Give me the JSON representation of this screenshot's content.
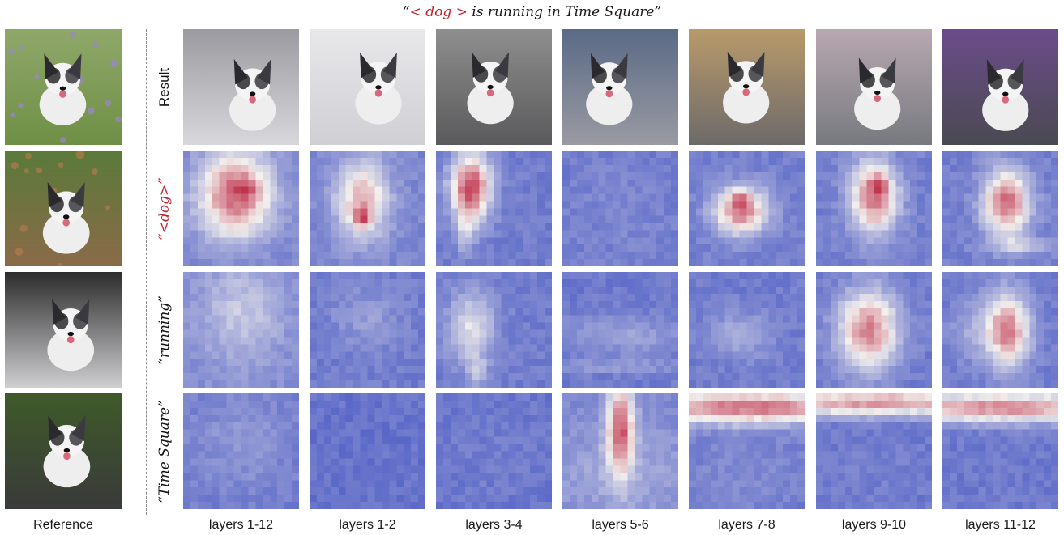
{
  "figure": {
    "prompt_prefix": "“",
    "prompt_token": "< dog >",
    "prompt_suffix": " is running in Time Square”",
    "reference_label": "Reference",
    "row_labels": [
      {
        "id": "result",
        "text": "Result",
        "highlight": false
      },
      {
        "id": "dog",
        "text": "“<dog>”",
        "highlight": true
      },
      {
        "id": "running",
        "text": "“running”",
        "highlight": false
      },
      {
        "id": "time-square",
        "text": "“Time Square”",
        "highlight": false
      }
    ],
    "column_labels": [
      "layers 1-12",
      "layers 1-2",
      "layers 3-4",
      "layers 5-6",
      "layers 7-8",
      "layers 9-10",
      "layers 11-12"
    ],
    "colors": {
      "highlight": "#c0262e",
      "heat_low": "#3b4cc0",
      "heat_mid": "#f2efec",
      "heat_high": "#b40426"
    }
  }
}
